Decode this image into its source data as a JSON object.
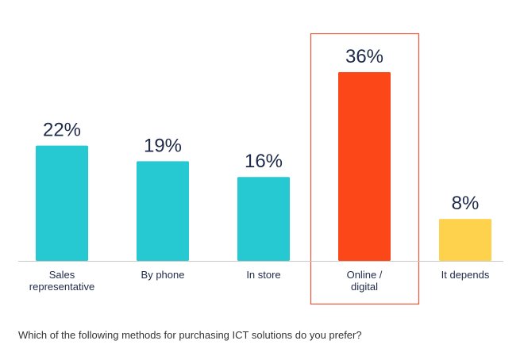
{
  "chart_data": {
    "type": "bar",
    "categories": [
      "Sales\nrepresentative",
      "By phone",
      "In store",
      "Online /\ndigital",
      "It depends"
    ],
    "values": [
      22,
      19,
      16,
      36,
      8
    ],
    "value_labels": [
      "22%",
      "19%",
      "16%",
      "36%",
      "8%"
    ],
    "colors": [
      "#26c8d2",
      "#26c8d2",
      "#26c8d2",
      "#fc4818",
      "#fed24c"
    ],
    "caption": "Which of the following methods for purchasing ICT solutions do you prefer?"
  }
}
